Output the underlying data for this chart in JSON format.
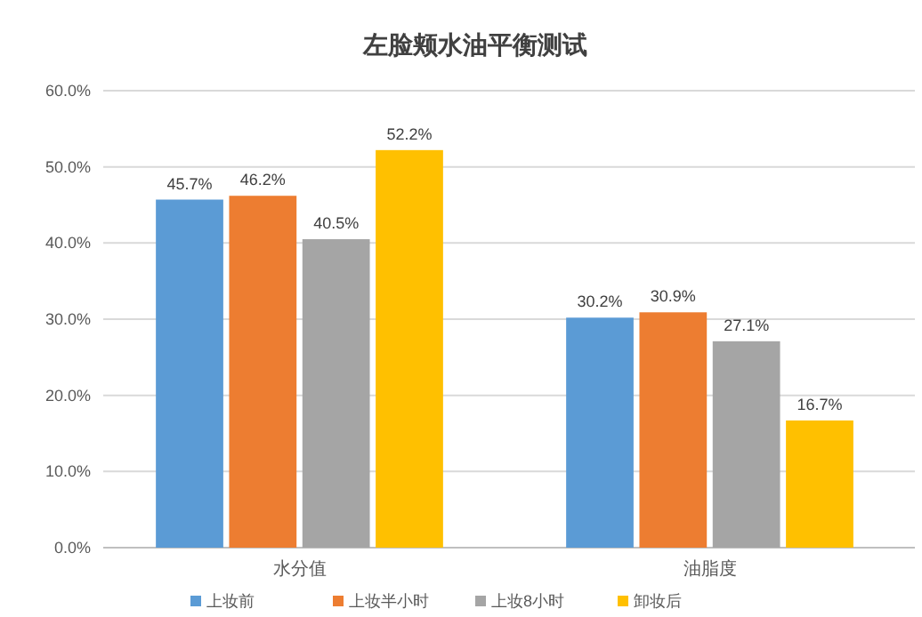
{
  "chart_data": {
    "type": "bar",
    "title": "左脸颊水油平衡测试",
    "categories": [
      "水分值",
      "油脂度"
    ],
    "series": [
      {
        "name": "上妆前",
        "color": "#5b9bd5",
        "values": [
          45.7,
          30.2
        ],
        "value_labels": [
          "45.7%",
          "30.2%"
        ]
      },
      {
        "name": "上妆半小时",
        "color": "#ed7d31",
        "values": [
          46.2,
          30.9
        ],
        "value_labels": [
          "46.2%",
          "30.9%"
        ]
      },
      {
        "name": "上妆8小时",
        "color": "#a5a5a5",
        "values": [
          40.5,
          27.1
        ],
        "value_labels": [
          "40.5%",
          "27.1%"
        ]
      },
      {
        "name": "卸妆后",
        "color": "#ffc000",
        "values": [
          52.2,
          16.7
        ],
        "value_labels": [
          "52.2%",
          "16.7%"
        ]
      }
    ],
    "ylim": [
      0,
      60
    ],
    "yticks": [
      {
        "value": 0,
        "label": "0.0%"
      },
      {
        "value": 10,
        "label": "10.0%"
      },
      {
        "value": 20,
        "label": "20.0%"
      },
      {
        "value": 30,
        "label": "30.0%"
      },
      {
        "value": 40,
        "label": "40.0%"
      },
      {
        "value": 50,
        "label": "50.0%"
      },
      {
        "value": 60,
        "label": "60.0%"
      }
    ],
    "grid": "y",
    "legend": "bottom"
  }
}
